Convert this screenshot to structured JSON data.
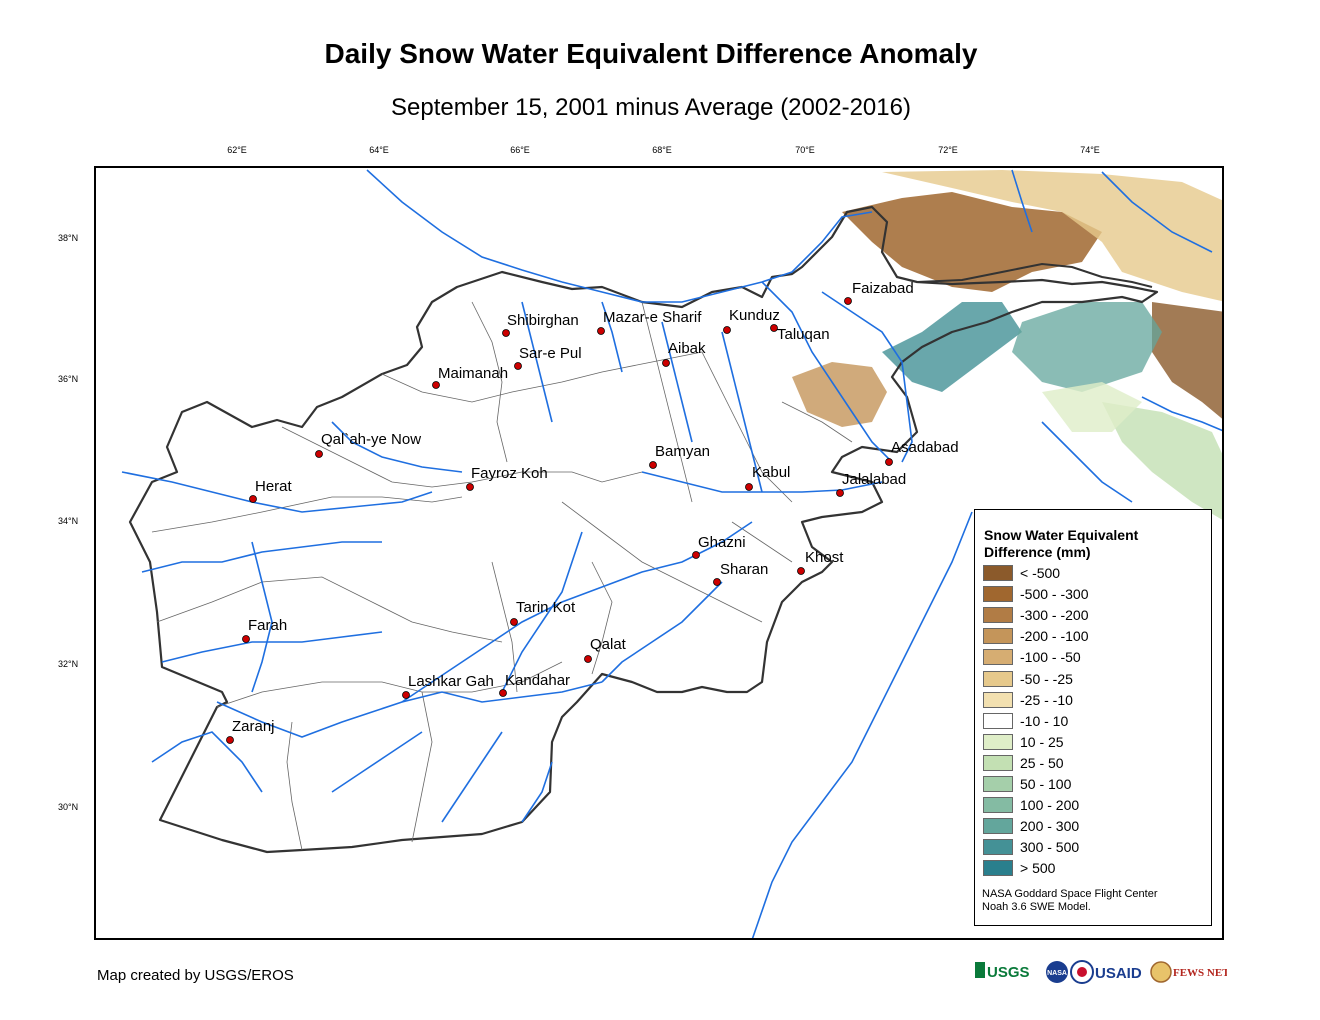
{
  "title": "Daily Snow Water Equivalent Difference Anomaly",
  "subtitle": "September 15, 2001 minus Average (2002-2016)",
  "longitude_ticks": [
    "62°E",
    "64°E",
    "66°E",
    "68°E",
    "70°E",
    "72°E",
    "74°E"
  ],
  "latitude_ticks": [
    "38°N",
    "36°N",
    "34°N",
    "32°N",
    "30°N"
  ],
  "cities": [
    "Faizabad",
    "Shibirghan",
    "Mazar-e Sharif",
    "Kunduz",
    "Taluqan",
    "Sar-e Pul",
    "Aibak",
    "Maimanah",
    "Qal`ah-ye Now",
    "Bamyan",
    "Asadabad",
    "Kabul",
    "Jalalabad",
    "Fayroz Koh",
    "Herat",
    "Ghazni",
    "Khost",
    "Sharan",
    "Tarin Kot",
    "Farah",
    "Qalat",
    "Lashkar Gah",
    "Kandahar",
    "Zaranj"
  ],
  "legend": {
    "title_line1": "Snow Water Equivalent",
    "title_line2": "Difference (mm)",
    "items": [
      {
        "label": "< -500",
        "color": "#8b5a2b"
      },
      {
        "label": "-500 - -300",
        "color": "#a0672f"
      },
      {
        "label": "-300 - -200",
        "color": "#b17c45"
      },
      {
        "label": "-200 - -100",
        "color": "#c4955a"
      },
      {
        "label": "-100 - -50",
        "color": "#d6ad72"
      },
      {
        "label": "-50 - -25",
        "color": "#e6c98c"
      },
      {
        "label": "-25 - -10",
        "color": "#f2e0b0"
      },
      {
        "label": "-10 - 10",
        "color": "#ffffff"
      },
      {
        "label": "10 - 25",
        "color": "#dfeec8"
      },
      {
        "label": "25 - 50",
        "color": "#c3e0b3"
      },
      {
        "label": "50 - 100",
        "color": "#a5cfaa"
      },
      {
        "label": "100 - 200",
        "color": "#84bba3"
      },
      {
        "label": "200 - 300",
        "color": "#63a69c"
      },
      {
        "label": "300 - 500",
        "color": "#449196"
      },
      {
        "label": "> 500",
        "color": "#2a7f8d"
      }
    ],
    "credit_line1": "NASA Goddard Space Flight Center",
    "credit_line2": "Noah 3.6 SWE Model."
  },
  "footer": "Map created by USGS/EROS",
  "logos": {
    "usgs": "USGS",
    "nasa": "NASA",
    "usaid": "USAID",
    "fewsnet": "FEWS NET"
  },
  "colors": {
    "river": "#1f6fe0",
    "boundary": "#333333",
    "city": "#cc0000"
  }
}
